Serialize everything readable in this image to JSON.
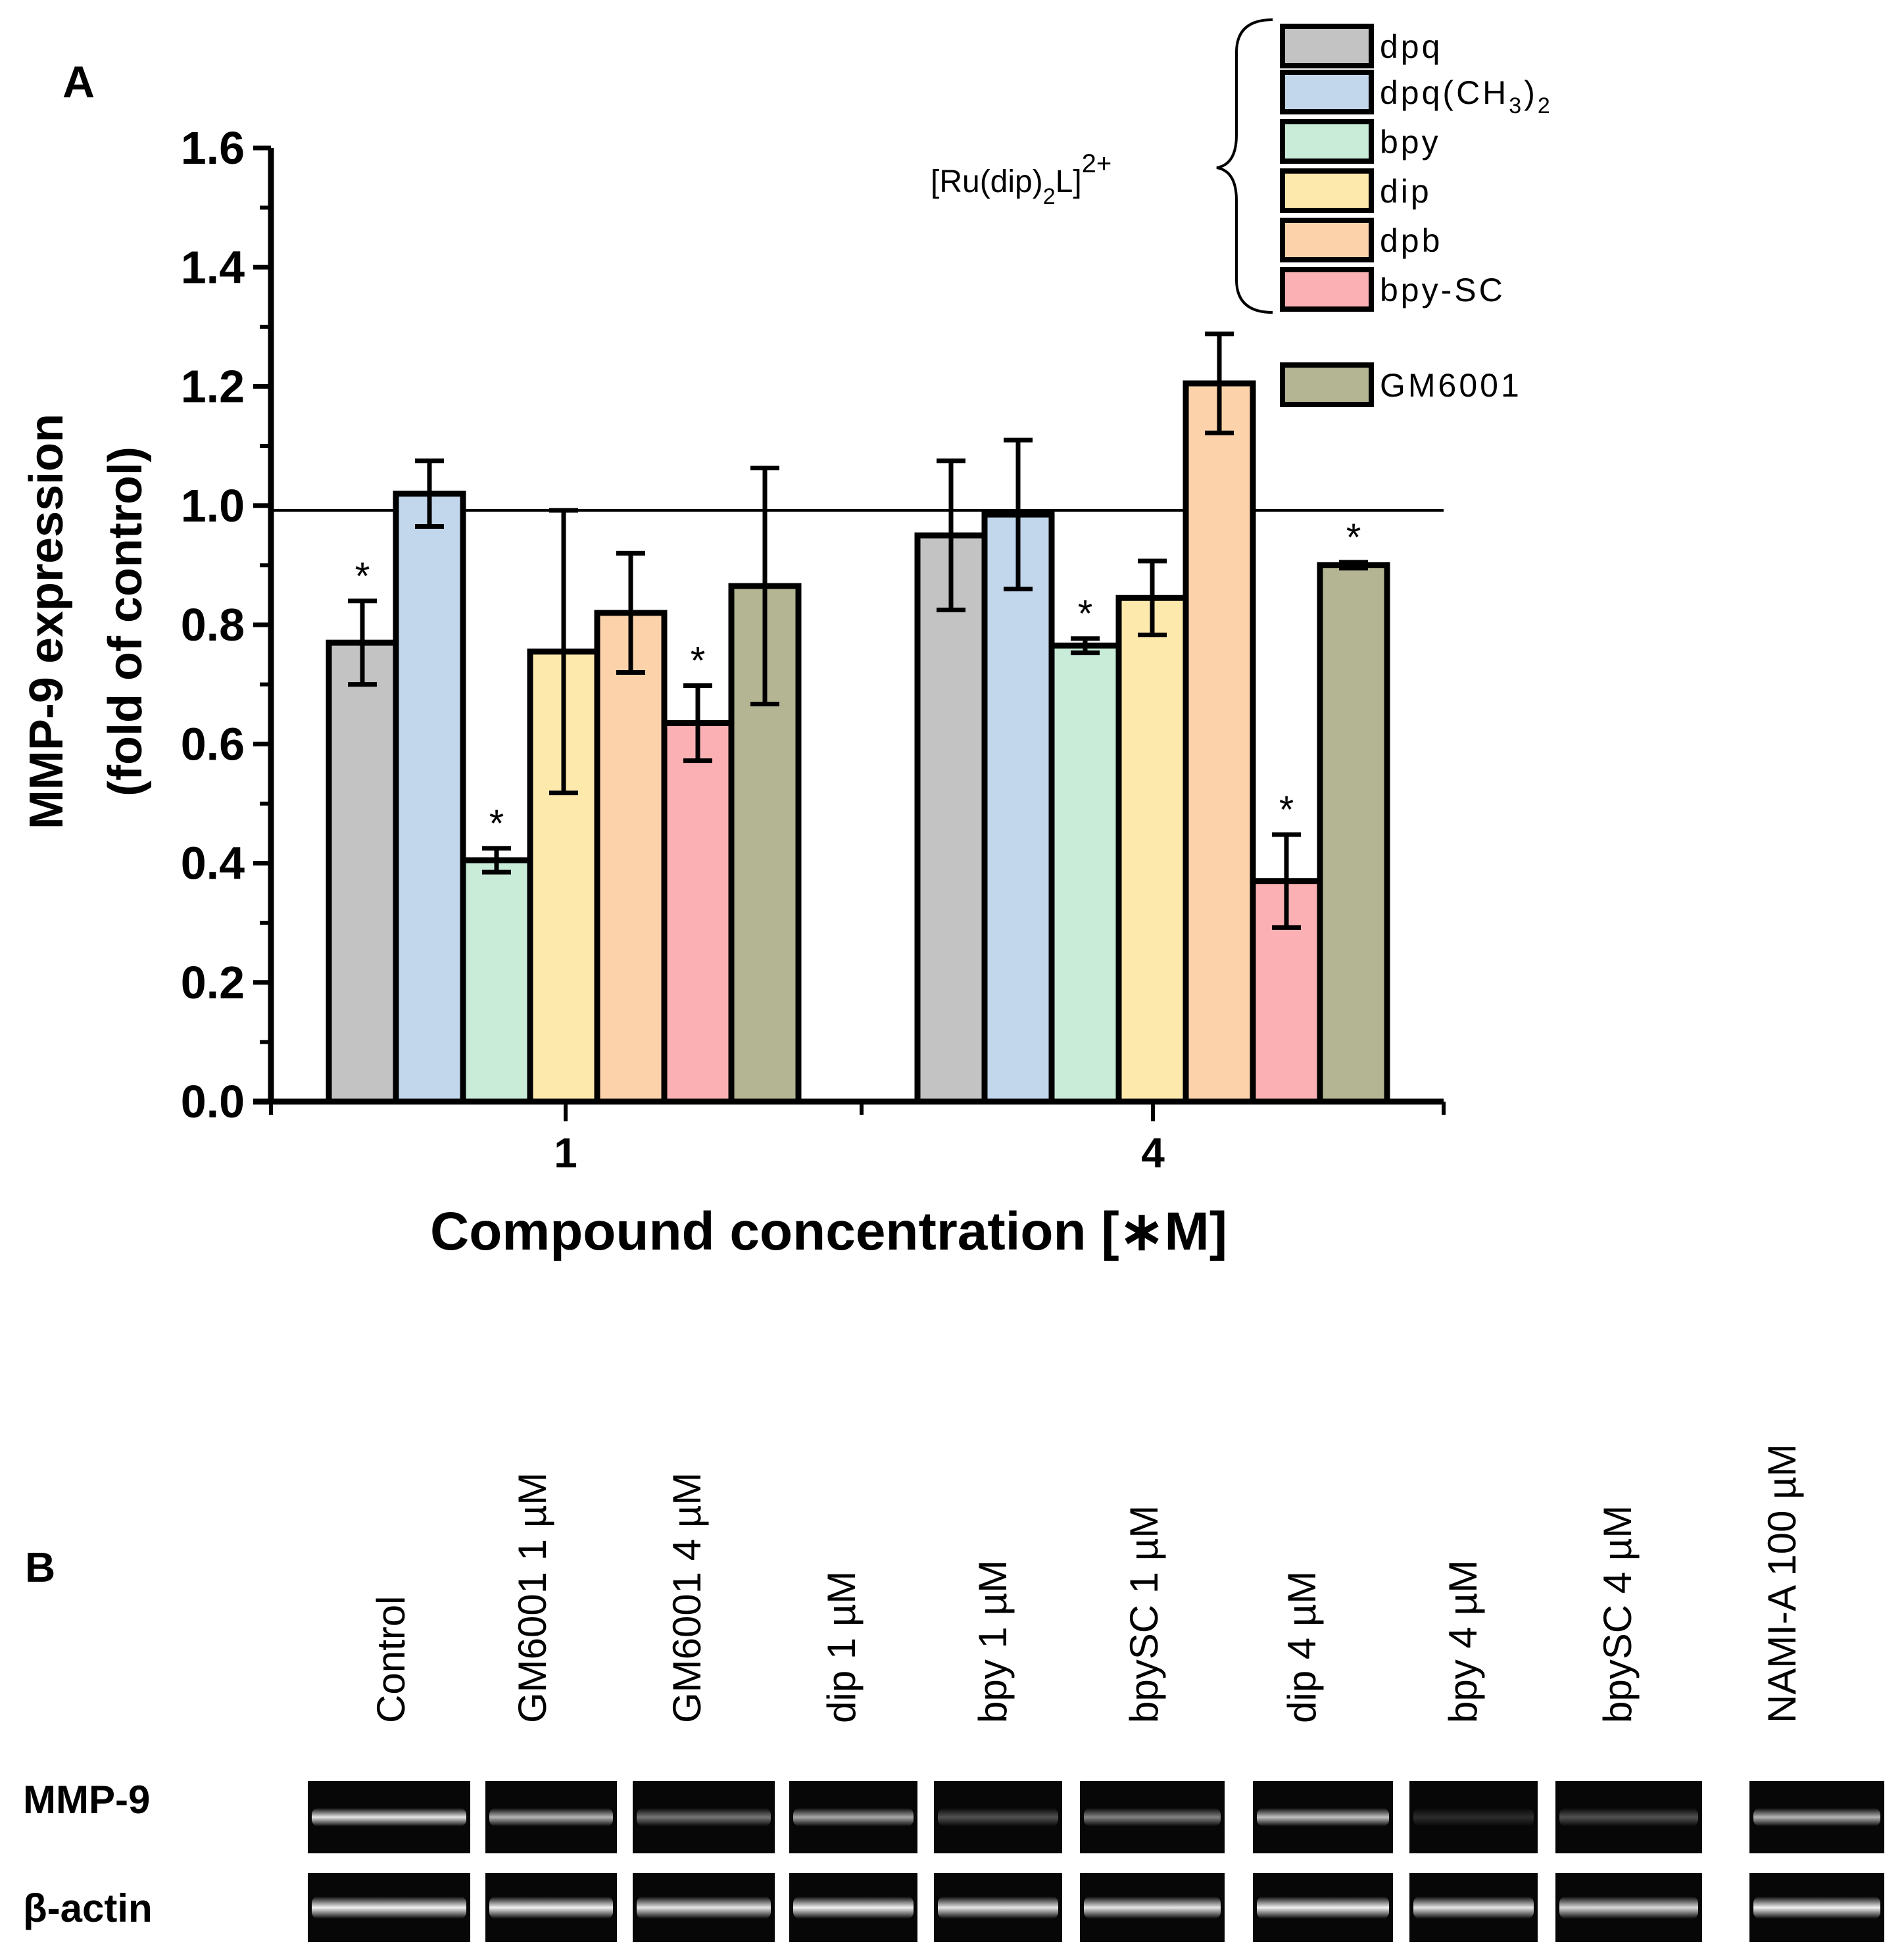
{
  "panel_a": {
    "label": "A"
  },
  "panel_b": {
    "label": "B",
    "lanes": [
      "Control",
      "GM6001 1 µM",
      "GM6001 4 µM",
      "dip 1 µM",
      "bpy 1 µM",
      "bpySC 1 µM",
      "dip 4 µM",
      "bpy 4 µM",
      "bpySC 4 µM",
      "NAMI-A 100 µM"
    ],
    "row_labels": [
      "MMP-9",
      "β-actin"
    ],
    "mmp9_intensity": [
      0.9,
      0.7,
      0.45,
      0.65,
      0.3,
      0.5,
      0.75,
      0.15,
      0.3,
      0.7
    ],
    "actin_intensity": [
      0.95,
      0.95,
      0.9,
      0.95,
      0.9,
      0.9,
      0.95,
      0.9,
      0.85,
      0.95
    ]
  },
  "legend": {
    "complex_label": "[Ru(dip)",
    "complex_sub": "2",
    "complex_label_end": "L]",
    "complex_sup": "2+",
    "ch3_sub1": "3",
    "ch3_sub2": "2"
  },
  "colors": {
    "dpq": "#c3c3c3",
    "dpq(CH3)2": "#c2d6ec",
    "bpy": "#c8ecd8",
    "dip": "#fde9ac",
    "dpb": "#fcd2aa",
    "bpy-SC": "#fbb1b4",
    "GM6001": "#b3b593"
  },
  "chart_data": {
    "type": "bar",
    "title": "",
    "xlabel": "Compound concentration [∗M]",
    "ylabel": "MMP-9 expression",
    "ylabel2": "(fold of control)",
    "categories": [
      "1",
      "4"
    ],
    "ylim": [
      0,
      1.6
    ],
    "yticks": [
      "0.0",
      "0.2",
      "0.4",
      "0.6",
      "0.8",
      "1.0",
      "1.2",
      "1.4",
      "1.6"
    ],
    "reference_line": 1.0,
    "significance_marker": "*",
    "series": [
      {
        "name": "dpq",
        "values": [
          0.77,
          0.95
        ],
        "errors": [
          0.07,
          0.125
        ],
        "significant": [
          true,
          false
        ]
      },
      {
        "name": "dpq(CH3)2",
        "display": "dpq(CH",
        "display_end": ")",
        "values": [
          1.02,
          0.985
        ],
        "errors": [
          0.055,
          0.125
        ],
        "significant": [
          false,
          false
        ]
      },
      {
        "name": "bpy",
        "values": [
          0.405,
          0.765
        ],
        "errors": [
          0.02,
          0.012
        ],
        "significant": [
          true,
          true
        ]
      },
      {
        "name": "dip",
        "values": [
          0.755,
          0.845
        ],
        "errors": [
          0.237,
          0.062
        ],
        "significant": [
          false,
          false
        ]
      },
      {
        "name": "dpb",
        "values": [
          0.82,
          1.205
        ],
        "errors": [
          0.1,
          0.083
        ],
        "significant": [
          false,
          false
        ]
      },
      {
        "name": "bpy-SC",
        "values": [
          0.635,
          0.37
        ],
        "errors": [
          0.063,
          0.078
        ],
        "significant": [
          true,
          true
        ]
      },
      {
        "name": "GM6001",
        "values": [
          0.865,
          0.9
        ],
        "errors": [
          0.198,
          0.005
        ],
        "significant": [
          false,
          true
        ]
      }
    ]
  }
}
